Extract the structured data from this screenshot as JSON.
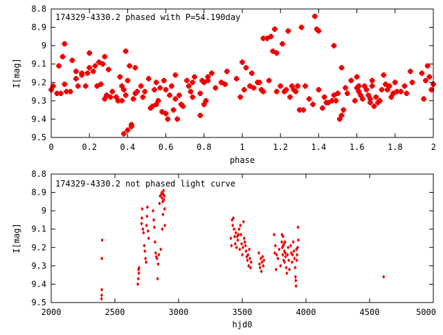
{
  "chart_data": [
    {
      "type": "scatter",
      "title": "174329-4330.2 phased with P=54.190day",
      "xlabel": "phase",
      "ylabel": "I[mag]",
      "xlim": [
        0,
        2
      ],
      "ylim": [
        8.8,
        9.5
      ],
      "y_inverted": true,
      "grid": false,
      "marker_color": "#ee0000",
      "x_ticks": [
        "0",
        "0.2",
        "0.4",
        "0.6",
        "0.8",
        "1",
        "1.2",
        "1.4",
        "1.6",
        "1.8",
        "2"
      ],
      "y_ticks": [
        "8.8",
        "8.9",
        "9",
        "9.1",
        "9.2",
        "9.3",
        "9.4",
        "9.5"
      ],
      "x_tick_values": [
        0,
        0.2,
        0.4,
        0.6,
        0.8,
        1.0,
        1.2,
        1.4,
        1.6,
        1.8,
        2.0
      ],
      "y_tick_values": [
        8.8,
        8.9,
        9.0,
        9.1,
        9.2,
        9.3,
        9.4,
        9.5
      ],
      "points": [
        [
          0.0,
          9.24
        ],
        [
          0.01,
          9.22
        ],
        [
          0.03,
          9.26
        ],
        [
          0.04,
          9.11
        ],
        [
          0.05,
          9.26
        ],
        [
          0.06,
          9.06
        ],
        [
          0.07,
          8.99
        ],
        [
          0.07,
          9.21
        ],
        [
          0.08,
          9.25
        ],
        [
          0.1,
          9.25
        ],
        [
          0.11,
          9.08
        ],
        [
          0.13,
          9.18
        ],
        [
          0.13,
          9.14
        ],
        [
          0.14,
          9.22
        ],
        [
          0.16,
          9.15
        ],
        [
          0.16,
          9.16
        ],
        [
          0.18,
          9.22
        ],
        [
          0.19,
          9.15
        ],
        [
          0.2,
          9.12
        ],
        [
          0.2,
          9.04
        ],
        [
          0.22,
          9.14
        ],
        [
          0.23,
          9.11
        ],
        [
          0.24,
          9.22
        ],
        [
          0.25,
          9.09
        ],
        [
          0.26,
          9.21
        ],
        [
          0.27,
          9.1
        ],
        [
          0.28,
          9.06
        ],
        [
          0.28,
          9.29
        ],
        [
          0.29,
          9.27
        ],
        [
          0.3,
          9.13
        ],
        [
          0.31,
          9.28
        ],
        [
          0.32,
          9.25
        ],
        [
          0.34,
          9.28
        ],
        [
          0.35,
          9.3
        ],
        [
          0.36,
          9.17
        ],
        [
          0.37,
          9.22
        ],
        [
          0.37,
          9.3
        ],
        [
          0.38,
          9.48
        ],
        [
          0.38,
          9.24
        ],
        [
          0.39,
          9.03
        ],
        [
          0.39,
          9.27
        ],
        [
          0.4,
          9.46
        ],
        [
          0.4,
          9.19
        ],
        [
          0.41,
          9.11
        ],
        [
          0.42,
          9.43
        ],
        [
          0.42,
          9.44
        ],
        [
          0.43,
          9.29
        ],
        [
          0.44,
          9.12
        ],
        [
          0.44,
          9.26
        ],
        [
          0.45,
          9.25
        ],
        [
          0.47,
          9.22
        ],
        [
          0.48,
          9.28
        ],
        [
          0.49,
          9.25
        ],
        [
          0.51,
          9.18
        ],
        [
          0.52,
          9.34
        ],
        [
          0.53,
          9.33
        ],
        [
          0.54,
          9.24
        ],
        [
          0.55,
          9.2
        ],
        [
          0.55,
          9.32
        ],
        [
          0.56,
          9.3
        ],
        [
          0.57,
          9.23
        ],
        [
          0.58,
          9.36
        ],
        [
          0.59,
          9.19
        ],
        [
          0.6,
          9.37
        ],
        [
          0.6,
          9.24
        ],
        [
          0.61,
          9.4
        ],
        [
          0.62,
          9.27
        ],
        [
          0.63,
          9.22
        ],
        [
          0.64,
          9.35
        ],
        [
          0.65,
          9.29
        ],
        [
          0.65,
          9.16
        ],
        [
          0.66,
          9.4
        ],
        [
          0.67,
          9.27
        ],
        [
          0.68,
          9.32
        ],
        [
          0.69,
          9.33
        ],
        [
          0.71,
          9.19
        ],
        [
          0.72,
          9.22
        ],
        [
          0.73,
          9.25
        ],
        [
          0.74,
          9.2
        ],
        [
          0.74,
          9.28
        ],
        [
          0.75,
          9.17
        ],
        [
          0.78,
          9.26
        ],
        [
          0.78,
          9.38
        ],
        [
          0.79,
          9.19
        ],
        [
          0.8,
          9.32
        ],
        [
          0.8,
          9.2
        ],
        [
          0.81,
          9.3
        ],
        [
          0.82,
          9.19
        ],
        [
          0.82,
          9.17
        ],
        [
          0.84,
          9.15
        ],
        [
          0.86,
          9.23
        ],
        [
          0.89,
          9.2
        ],
        [
          0.91,
          9.21
        ],
        [
          0.92,
          9.14
        ],
        [
          0.97,
          9.18
        ],
        [
          0.99,
          9.28
        ],
        [
          1.0,
          9.09
        ],
        [
          1.01,
          9.24
        ],
        [
          1.02,
          9.12
        ],
        [
          1.04,
          9.22
        ],
        [
          1.05,
          9.15
        ],
        [
          1.06,
          9.23
        ],
        [
          1.08,
          9.2
        ],
        [
          1.09,
          9.2
        ],
        [
          1.1,
          9.24
        ],
        [
          1.11,
          8.96
        ],
        [
          1.11,
          9.25
        ],
        [
          1.13,
          8.96
        ],
        [
          1.14,
          9.19
        ],
        [
          1.15,
          8.95
        ],
        [
          1.16,
          9.03
        ],
        [
          1.17,
          8.91
        ],
        [
          1.18,
          9.04
        ],
        [
          1.18,
          9.25
        ],
        [
          1.2,
          9.22
        ],
        [
          1.21,
          8.99
        ],
        [
          1.22,
          9.25
        ],
        [
          1.23,
          9.24
        ],
        [
          1.24,
          8.92
        ],
        [
          1.25,
          9.28
        ],
        [
          1.26,
          9.22
        ],
        [
          1.27,
          9.24
        ],
        [
          1.28,
          9.25
        ],
        [
          1.29,
          9.22
        ],
        [
          1.3,
          9.35
        ],
        [
          1.31,
          8.9
        ],
        [
          1.32,
          9.35
        ],
        [
          1.33,
          9.22
        ],
        [
          1.35,
          9.29
        ],
        [
          1.37,
          9.32
        ],
        [
          1.38,
          8.84
        ],
        [
          1.39,
          8.91
        ],
        [
          1.4,
          8.92
        ],
        [
          1.4,
          9.24
        ],
        [
          1.42,
          9.34
        ],
        [
          1.43,
          9.28
        ],
        [
          1.44,
          9.31
        ],
        [
          1.45,
          9.31
        ],
        [
          1.47,
          9.3
        ],
        [
          1.48,
          9.27
        ],
        [
          1.48,
          9.0
        ],
        [
          1.49,
          9.3
        ],
        [
          1.5,
          9.26
        ],
        [
          1.51,
          9.4
        ],
        [
          1.52,
          9.12
        ],
        [
          1.52,
          9.38
        ],
        [
          1.53,
          9.35
        ],
        [
          1.54,
          9.23
        ],
        [
          1.55,
          9.26
        ],
        [
          1.57,
          9.19
        ],
        [
          1.59,
          9.3
        ],
        [
          1.6,
          9.23
        ],
        [
          1.6,
          9.17
        ],
        [
          1.61,
          9.22
        ],
        [
          1.61,
          9.25
        ],
        [
          1.62,
          9.27
        ],
        [
          1.63,
          9.29
        ],
        [
          1.64,
          9.22
        ],
        [
          1.65,
          9.24
        ],
        [
          1.66,
          9.27
        ],
        [
          1.67,
          9.29
        ],
        [
          1.67,
          9.31
        ],
        [
          1.68,
          9.22
        ],
        [
          1.68,
          9.19
        ],
        [
          1.69,
          9.33
        ],
        [
          1.7,
          9.28
        ],
        [
          1.71,
          9.31
        ],
        [
          1.72,
          9.3
        ],
        [
          1.73,
          9.24
        ],
        [
          1.74,
          9.16
        ],
        [
          1.75,
          9.21
        ],
        [
          1.76,
          9.24
        ],
        [
          1.77,
          9.22
        ],
        [
          1.78,
          9.28
        ],
        [
          1.79,
          9.26
        ],
        [
          1.8,
          9.2
        ],
        [
          1.81,
          9.25
        ],
        [
          1.83,
          9.25
        ],
        [
          1.85,
          9.22
        ],
        [
          1.86,
          9.26
        ],
        [
          1.88,
          9.14
        ],
        [
          1.89,
          9.2
        ],
        [
          1.94,
          9.15
        ],
        [
          1.95,
          9.29
        ],
        [
          1.96,
          9.19
        ],
        [
          1.97,
          9.11
        ],
        [
          1.98,
          9.17
        ],
        [
          1.99,
          9.24
        ],
        [
          2.0,
          9.21
        ]
      ]
    },
    {
      "type": "scatter",
      "title": "174329-4330.2 not phased light curve",
      "xlabel": "hjd0",
      "ylabel": "I[mag]",
      "xlim": [
        2000,
        5000
      ],
      "ylim": [
        8.8,
        9.5
      ],
      "y_inverted": true,
      "grid": false,
      "marker_color": "#ee0000",
      "x_ticks": [
        "2000",
        "2500",
        "3000",
        "3500",
        "4000",
        "4500",
        "5000"
      ],
      "y_ticks": [
        "8.8",
        "8.9",
        "9",
        "9.1",
        "9.2",
        "9.3",
        "9.4",
        "9.5"
      ],
      "x_tick_values": [
        2000,
        2500,
        3000,
        3500,
        4000,
        4500,
        5000
      ],
      "y_tick_values": [
        8.8,
        8.9,
        9.0,
        9.1,
        9.2,
        9.3,
        9.4,
        9.5
      ],
      "points": [
        [
          2395,
          9.48
        ],
        [
          2396,
          9.46
        ],
        [
          2397,
          9.43
        ],
        [
          2398,
          9.26
        ],
        [
          2400,
          9.16
        ],
        [
          2680,
          9.4
        ],
        [
          2683,
          9.37
        ],
        [
          2685,
          9.32
        ],
        [
          2688,
          9.34
        ],
        [
          2690,
          9.31
        ],
        [
          2710,
          9.07
        ],
        [
          2712,
          9.04
        ],
        [
          2715,
          8.99
        ],
        [
          2720,
          9.1
        ],
        [
          2725,
          9.12
        ],
        [
          2730,
          9.19
        ],
        [
          2735,
          9.22
        ],
        [
          2740,
          9.26
        ],
        [
          2745,
          9.28
        ],
        [
          2748,
          9.08
        ],
        [
          2752,
          9.03
        ],
        [
          2755,
          8.98
        ],
        [
          2760,
          9.11
        ],
        [
          2765,
          9.15
        ],
        [
          2800,
          9.0
        ],
        [
          2805,
          9.05
        ],
        [
          2810,
          9.09
        ],
        [
          2815,
          9.17
        ],
        [
          2820,
          9.23
        ],
        [
          2825,
          9.25
        ],
        [
          2830,
          9.26
        ],
        [
          2835,
          9.37
        ],
        [
          2840,
          9.29
        ],
        [
          2845,
          9.24
        ],
        [
          2850,
          8.96
        ],
        [
          2855,
          8.92
        ],
        [
          2860,
          9.21
        ],
        [
          2865,
          8.91
        ],
        [
          2868,
          8.9
        ],
        [
          2870,
          8.93
        ],
        [
          2872,
          9.1
        ],
        [
          2875,
          8.95
        ],
        [
          2878,
          9.02
        ],
        [
          2880,
          8.91
        ],
        [
          2882,
          8.89
        ],
        [
          2885,
          8.94
        ],
        [
          2888,
          8.92
        ],
        [
          2890,
          8.99
        ],
        [
          2892,
          9.08
        ],
        [
          3410,
          9.15
        ],
        [
          3415,
          9.19
        ],
        [
          3420,
          9.05
        ],
        [
          3425,
          9.08
        ],
        [
          3430,
          9.04
        ],
        [
          3435,
          9.1
        ],
        [
          3440,
          9.14
        ],
        [
          3445,
          9.18
        ],
        [
          3450,
          9.12
        ],
        [
          3455,
          9.2
        ],
        [
          3460,
          9.14
        ],
        [
          3465,
          9.16
        ],
        [
          3470,
          9.13
        ],
        [
          3475,
          9.1
        ],
        [
          3480,
          9.21
        ],
        [
          3485,
          9.08
        ],
        [
          3490,
          9.13
        ],
        [
          3495,
          9.18
        ],
        [
          3500,
          9.24
        ],
        [
          3505,
          9.2
        ],
        [
          3510,
          9.06
        ],
        [
          3515,
          9.15
        ],
        [
          3520,
          9.17
        ],
        [
          3525,
          9.19
        ],
        [
          3530,
          9.22
        ],
        [
          3535,
          9.25
        ],
        [
          3540,
          9.27
        ],
        [
          3545,
          9.24
        ],
        [
          3550,
          9.3
        ],
        [
          3555,
          9.21
        ],
        [
          3560,
          9.26
        ],
        [
          3565,
          9.31
        ],
        [
          3570,
          9.28
        ],
        [
          3630,
          9.23
        ],
        [
          3635,
          9.29
        ],
        [
          3640,
          9.31
        ],
        [
          3645,
          9.26
        ],
        [
          3650,
          9.33
        ],
        [
          3655,
          9.28
        ],
        [
          3660,
          9.25
        ],
        [
          3665,
          9.3
        ],
        [
          3670,
          9.27
        ],
        [
          3750,
          9.13
        ],
        [
          3755,
          9.23
        ],
        [
          3760,
          9.19
        ],
        [
          3765,
          9.32
        ],
        [
          3770,
          9.24
        ],
        [
          3780,
          9.26
        ],
        [
          3790,
          9.21
        ],
        [
          3800,
          9.3
        ],
        [
          3810,
          9.17
        ],
        [
          3812,
          9.13
        ],
        [
          3815,
          9.2
        ],
        [
          3818,
          9.24
        ],
        [
          3820,
          9.14
        ],
        [
          3822,
          9.19
        ],
        [
          3825,
          9.27
        ],
        [
          3828,
          9.18
        ],
        [
          3830,
          9.22
        ],
        [
          3832,
          9.28
        ],
        [
          3835,
          9.17
        ],
        [
          3838,
          9.23
        ],
        [
          3840,
          9.25
        ],
        [
          3845,
          9.31
        ],
        [
          3850,
          9.34
        ],
        [
          3855,
          9.24
        ],
        [
          3860,
          9.2
        ],
        [
          3865,
          9.27
        ],
        [
          3870,
          9.32
        ],
        [
          3880,
          9.19
        ],
        [
          3885,
          9.23
        ],
        [
          3890,
          9.28
        ],
        [
          3895,
          9.24
        ],
        [
          3900,
          9.17
        ],
        [
          3905,
          9.22
        ],
        [
          3910,
          9.26
        ],
        [
          3915,
          9.31
        ],
        [
          3918,
          9.36
        ],
        [
          3920,
          9.38
        ],
        [
          3922,
          9.41
        ],
        [
          3925,
          9.21
        ],
        [
          3928,
          9.27
        ],
        [
          3930,
          9.24
        ],
        [
          3935,
          9.2
        ],
        [
          3938,
          9.09
        ],
        [
          3940,
          9.16
        ],
        [
          4610,
          9.36
        ]
      ]
    }
  ]
}
